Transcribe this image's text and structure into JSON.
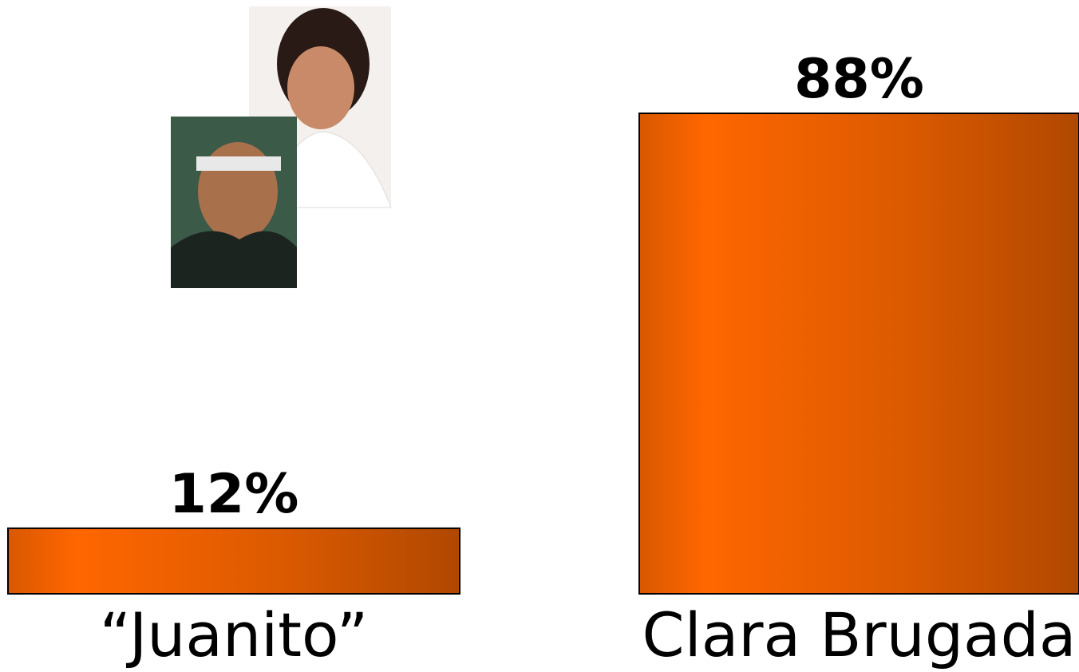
{
  "chart_data": {
    "type": "bar",
    "categories": [
      "“Juanito”",
      "Clara Brugada"
    ],
    "values": [
      12,
      88
    ],
    "value_labels": [
      "12%",
      "88%"
    ],
    "color": "#f06000"
  }
}
